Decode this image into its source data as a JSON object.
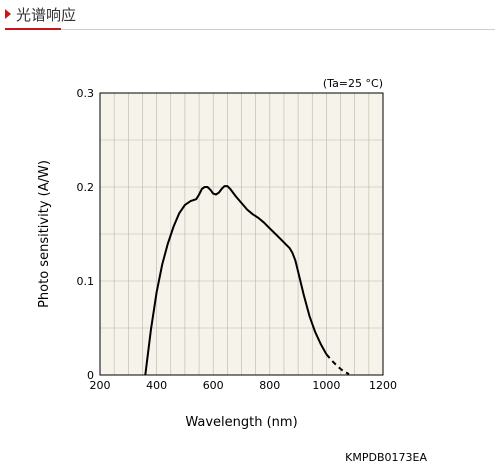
{
  "header": {
    "title": "光谱响应",
    "accent_color": "#c8161d"
  },
  "chart_data": {
    "type": "line",
    "xlabel": "Wavelength (nm)",
    "ylabel": "Photo sensitivity (A/W)",
    "xlim": [
      200,
      1200
    ],
    "ylim": [
      0,
      0.3
    ],
    "xticks": [
      200,
      400,
      600,
      800,
      1000,
      1200
    ],
    "yticks": [
      0,
      0.1,
      0.2,
      0.3
    ],
    "ytick_labels": [
      "0",
      "0.1",
      "0.2",
      "0.3"
    ],
    "grid": true,
    "plot_background": "#f5f3ea",
    "line_color": "#000000",
    "condition": "(Ta=25 °C)",
    "code": "KMPDB0173EA",
    "series": [
      {
        "style": "solid",
        "x": [
          360,
          380,
          400,
          420,
          440,
          460,
          480,
          500,
          520,
          540,
          550,
          560,
          570,
          580,
          590,
          600,
          610,
          620,
          630,
          640,
          650,
          660,
          670,
          680,
          700,
          720,
          740,
          760,
          780,
          800,
          820,
          840,
          860,
          870,
          880,
          890,
          900,
          920,
          940,
          960,
          980,
          1000
        ],
        "y": [
          0.0,
          0.048,
          0.088,
          0.118,
          0.14,
          0.158,
          0.172,
          0.181,
          0.185,
          0.187,
          0.192,
          0.198,
          0.2,
          0.2,
          0.197,
          0.193,
          0.192,
          0.194,
          0.198,
          0.201,
          0.201,
          0.198,
          0.194,
          0.19,
          0.183,
          0.176,
          0.171,
          0.167,
          0.162,
          0.156,
          0.15,
          0.144,
          0.138,
          0.135,
          0.13,
          0.122,
          0.11,
          0.085,
          0.063,
          0.046,
          0.033,
          0.022
        ]
      },
      {
        "style": "dashed",
        "x": [
          1000,
          1020,
          1040,
          1060,
          1080
        ],
        "y": [
          0.022,
          0.015,
          0.009,
          0.004,
          0.001
        ]
      }
    ]
  }
}
